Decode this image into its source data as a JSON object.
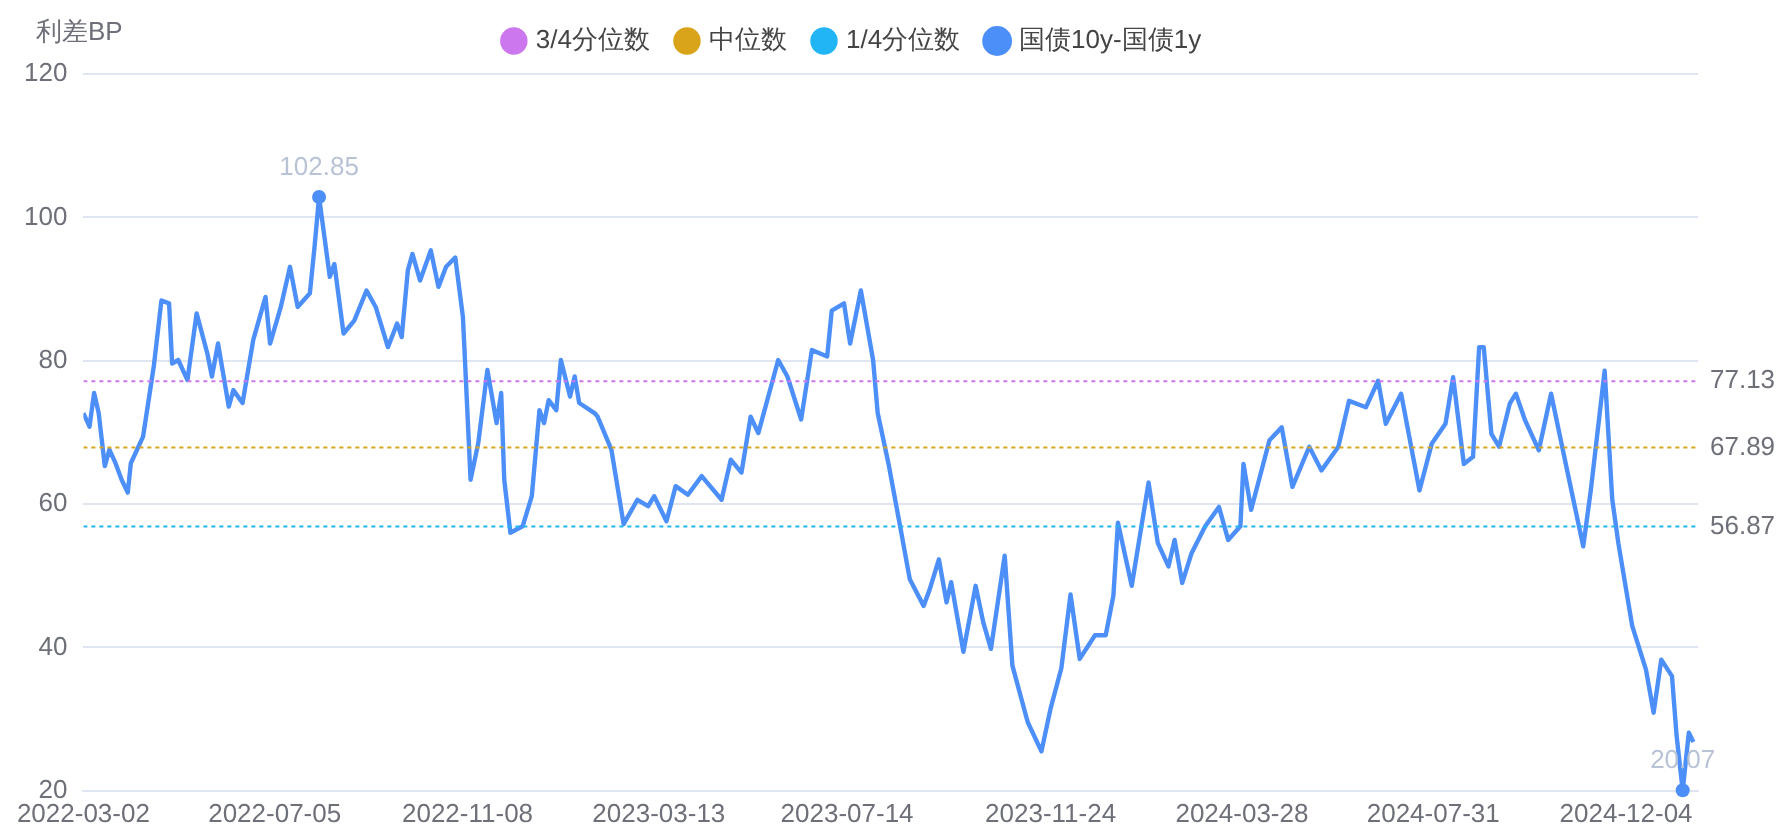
{
  "chart_data": {
    "type": "line",
    "ylabel": "利差BP",
    "legend": "top",
    "grid": "y",
    "marker": "none",
    "line_style": "solid",
    "xlim": [
      "2022-03-02",
      "2025-01-20"
    ],
    "xticks": [
      "2022-03-02",
      "2022-07-05",
      "2022-11-08",
      "2023-03-13",
      "2023-07-14",
      "2023-11-24",
      "2024-03-28",
      "2024-07-31",
      "2024-12-04"
    ],
    "ylim": [
      20,
      120
    ],
    "yticks": [
      20,
      40,
      60,
      80,
      100,
      120
    ],
    "ref_lines": [
      {
        "axis": "y",
        "value": 77.13,
        "label": "3/4分位数",
        "color": "#cc77ee",
        "line_style": "dotted"
      },
      {
        "axis": "y",
        "value": 67.89,
        "label": "中位数",
        "color": "#d9a31a",
        "line_style": "dotted"
      },
      {
        "axis": "y",
        "value": 56.87,
        "label": "1/4分位数",
        "color": "#22b5f5",
        "line_style": "dotted"
      }
    ],
    "annotations": [
      {
        "text": "102.85",
        "x": "2022-08-03",
        "y": 102.85
      },
      {
        "text": "20.07",
        "x": "2025-01-10",
        "y": 20.07
      },
      "77.13",
      "67.89",
      "56.87"
    ],
    "series": [
      {
        "name": "国债10y-国债1y",
        "color": "#4d8ff8",
        "x": [
          "2022-03-02",
          "2022-03-06",
          "2022-03-09",
          "2022-03-12",
          "2022-03-16",
          "2022-03-19",
          "2022-03-23",
          "2022-03-27",
          "2022-03-31",
          "2022-04-02",
          "2022-04-10",
          "2022-04-17",
          "2022-04-22",
          "2022-04-27",
          "2022-04-29",
          "2022-05-03",
          "2022-05-09",
          "2022-05-15",
          "2022-05-22",
          "2022-05-25",
          "2022-05-29",
          "2022-06-05",
          "2022-06-08",
          "2022-06-14",
          "2022-06-21",
          "2022-06-29",
          "2022-07-02",
          "2022-07-09",
          "2022-07-15",
          "2022-07-20",
          "2022-07-28",
          "2022-07-31",
          "2022-08-03",
          "2022-08-10",
          "2022-08-13",
          "2022-08-19",
          "2022-08-26",
          "2022-09-03",
          "2022-09-09",
          "2022-09-17",
          "2022-09-23",
          "2022-09-26",
          "2022-09-30",
          "2022-10-03",
          "2022-10-08",
          "2022-10-15",
          "2022-10-20",
          "2022-10-25",
          "2022-10-31",
          "2022-11-05",
          "2022-11-10",
          "2022-11-15",
          "2022-11-21",
          "2022-11-27",
          "2022-11-30",
          "2022-12-02",
          "2022-12-06",
          "2022-12-14",
          "2022-12-20",
          "2022-12-25",
          "2022-12-28",
          "2022-12-31",
          "2023-01-05",
          "2023-01-08",
          "2023-01-14",
          "2023-01-17",
          "2023-01-20",
          "2023-01-30",
          "2023-02-01",
          "2023-02-10",
          "2023-02-18",
          "2023-02-27",
          "2023-03-06",
          "2023-03-10",
          "2023-03-18",
          "2023-03-24",
          "2023-04-01",
          "2023-04-10",
          "2023-04-23",
          "2023-04-29",
          "2023-05-06",
          "2023-05-12",
          "2023-05-17",
          "2023-05-30",
          "2023-06-05",
          "2023-06-14",
          "2023-06-21",
          "2023-07-01",
          "2023-07-04",
          "2023-07-12",
          "2023-07-16",
          "2023-07-23",
          "2023-07-31",
          "2023-08-03",
          "2023-08-10",
          "2023-08-18",
          "2023-08-24",
          "2023-09-02",
          "2023-09-06",
          "2023-09-12",
          "2023-09-17",
          "2023-09-20",
          "2023-09-28",
          "2023-10-06",
          "2023-10-11",
          "2023-10-16",
          "2023-10-25",
          "2023-10-30",
          "2023-11-09",
          "2023-11-18",
          "2023-11-24",
          "2023-12-01",
          "2023-12-07",
          "2023-12-13",
          "2023-12-23",
          "2023-12-30",
          "2024-01-04",
          "2024-01-07",
          "2024-01-16",
          "2024-01-27",
          "2024-02-02",
          "2024-02-09",
          "2024-02-13",
          "2024-02-18",
          "2024-02-24",
          "2024-03-04",
          "2024-03-13",
          "2024-03-19",
          "2024-03-27",
          "2024-03-29",
          "2024-04-03",
          "2024-04-15",
          "2024-04-23",
          "2024-04-30",
          "2024-05-11",
          "2024-05-19",
          "2024-05-30",
          "2024-06-06",
          "2024-06-17",
          "2024-06-25",
          "2024-06-30",
          "2024-07-10",
          "2024-07-22",
          "2024-07-30",
          "2024-08-08",
          "2024-08-13",
          "2024-08-20",
          "2024-08-26",
          "2024-08-30",
          "2024-09-02",
          "2024-09-07",
          "2024-09-12",
          "2024-09-19",
          "2024-09-23",
          "2024-09-29",
          "2024-10-08",
          "2024-10-16",
          "2024-10-26",
          "2024-11-06",
          "2024-11-11",
          "2024-11-20",
          "2024-11-25",
          "2024-11-29",
          "2024-12-08",
          "2024-12-17",
          "2024-12-22",
          "2024-12-27",
          "2025-01-03",
          "2025-01-06",
          "2025-01-10",
          "2025-01-14",
          "2025-01-17"
        ],
        "values": [
          72.7,
          70.8,
          75.5,
          72.7,
          65.3,
          67.6,
          65.7,
          63.4,
          61.6,
          65.7,
          69.4,
          79.2,
          88.4,
          88.0,
          79.6,
          80.1,
          77.3,
          86.6,
          81.0,
          77.8,
          82.4,
          73.6,
          75.9,
          74.1,
          82.9,
          88.9,
          82.4,
          87.5,
          93.1,
          87.5,
          89.4,
          95.8,
          102.85,
          91.7,
          93.5,
          83.8,
          85.6,
          89.8,
          87.5,
          81.9,
          85.2,
          83.3,
          92.6,
          94.9,
          91.2,
          95.4,
          90.3,
          93.1,
          94.4,
          86.1,
          63.4,
          68.5,
          78.7,
          71.3,
          75.5,
          63.4,
          56.0,
          56.9,
          61.1,
          73.1,
          71.3,
          74.5,
          73.1,
          80.1,
          75.0,
          77.8,
          74.1,
          72.7,
          72.2,
          67.6,
          57.2,
          60.6,
          59.7,
          61.1,
          57.6,
          62.5,
          61.3,
          63.9,
          60.6,
          66.2,
          64.4,
          72.2,
          69.9,
          80.1,
          77.8,
          71.8,
          81.5,
          80.6,
          87.0,
          88.0,
          82.4,
          89.8,
          80.1,
          72.7,
          65.7,
          56.5,
          49.5,
          45.8,
          48.1,
          52.3,
          46.3,
          49.1,
          39.4,
          48.6,
          43.5,
          39.8,
          52.8,
          37.5,
          29.6,
          25.5,
          31.5,
          37.1,
          47.4,
          38.4,
          41.7,
          41.7,
          47.2,
          57.4,
          48.6,
          63.0,
          54.6,
          51.3,
          55.0,
          49.0,
          53.1,
          56.9,
          59.6,
          55.0,
          56.9,
          65.6,
          59.2,
          68.9,
          70.7,
          62.4,
          68.0,
          64.7,
          68.0,
          74.4,
          73.5,
          77.2,
          71.2,
          75.4,
          61.9,
          68.4,
          71.2,
          77.7,
          65.6,
          66.6,
          81.9,
          81.9,
          69.8,
          68.0,
          74.0,
          75.4,
          71.7,
          67.5,
          75.4,
          65.2,
          54.1,
          62.0,
          78.6,
          60.6,
          54.5,
          43.0,
          36.9,
          30.9,
          38.3,
          36.0,
          27.7,
          20.07,
          28.1,
          26.8
        ]
      }
    ]
  }
}
